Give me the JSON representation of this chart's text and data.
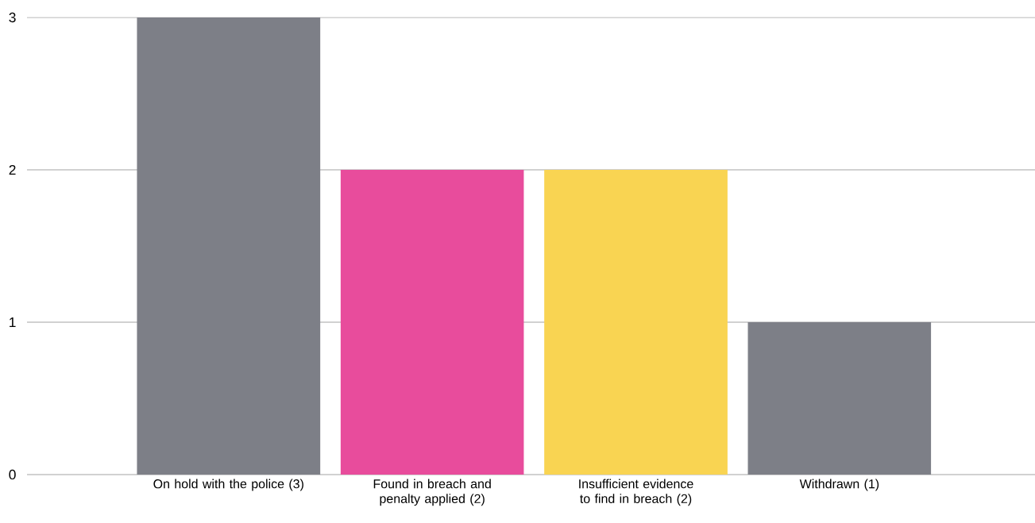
{
  "chart_data": {
    "type": "bar",
    "categories": [
      "On hold with the police (3)",
      "Found in breach and penalty applied (2)",
      "Insufficient evidence to find in breach (2)",
      "Withdrawn (1)"
    ],
    "values": [
      3,
      2,
      2,
      1
    ],
    "colors": [
      "#7d7f87",
      "#e84c9c",
      "#f9d452",
      "#7d7f87"
    ],
    "ylim": [
      0,
      3
    ],
    "yticks": [
      0,
      1,
      2,
      3
    ],
    "grid": "y"
  }
}
